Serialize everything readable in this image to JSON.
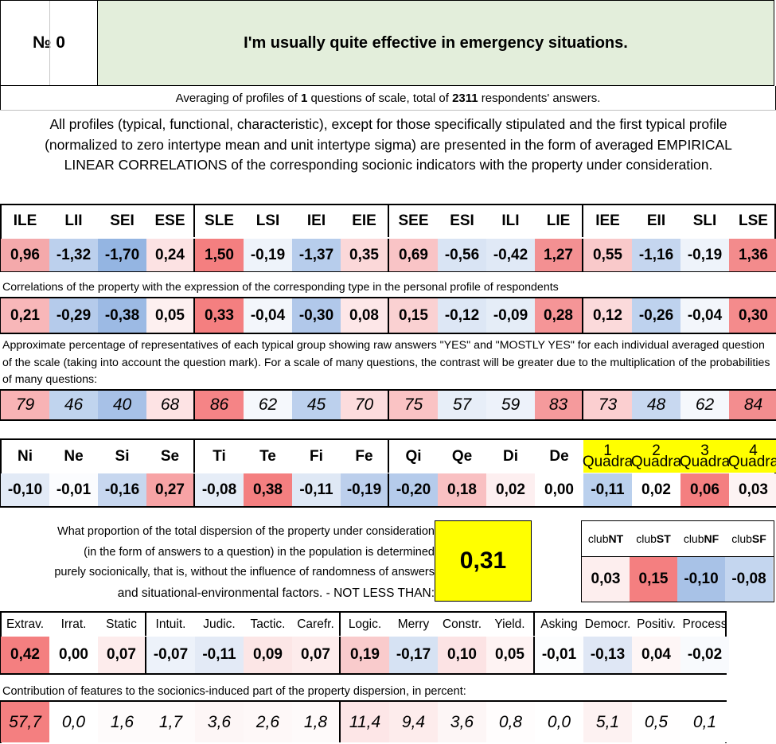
{
  "header": {
    "no_label": "№ 0",
    "question": "I'm usually quite effective in emergency situations."
  },
  "averaging": {
    "pre": "Averaging of profiles of ",
    "n_questions": "1",
    "mid": " questions of scale, total of ",
    "n_respondents": "2311",
    "post": " respondents' answers."
  },
  "intro_text": "All profiles (typical, functional, characteristic), except for those specifically stipulated and the first typical profile (normalized to zero intertype mean and unit intertype sigma) are presented in the form of averaged EMPIRICAL LINEAR CORRELATIONS of the corresponding socionic indicators with the property under consideration.",
  "types": {
    "labels": [
      "ILE",
      "LII",
      "SEI",
      "ESE",
      "SLE",
      "LSI",
      "IEI",
      "EIE",
      "SEE",
      "ESI",
      "ILI",
      "LIE",
      "IEE",
      "EII",
      "SLI",
      "LSE"
    ],
    "values": [
      "0,96",
      "-1,32",
      "-1,70",
      "0,24",
      "1,50",
      "-0,19",
      "-1,37",
      "0,35",
      "0,69",
      "-0,56",
      "-0,42",
      "1,27",
      "0,55",
      "-1,16",
      "-0,19",
      "1,36"
    ],
    "values_colors": [
      "#f4a9ab",
      "#bcd0ed",
      "#94b5e2",
      "#fce2e3",
      "#f47f80",
      "#eef3fa",
      "#b7cdec",
      "#fbd8d9",
      "#f9c4c6",
      "#d9e4f4",
      "#e0e9f6",
      "#f39092",
      "#f9c9ca",
      "#c5d6ef",
      "#eef3fa",
      "#f38b8c"
    ],
    "corr_note": "Correlations of the property with the expression of the corresponding type in the personal profile of respondents",
    "corr": [
      "0,21",
      "-0,29",
      "-0,38",
      "0,05",
      "0,33",
      "-0,04",
      "-0,30",
      "0,08",
      "0,15",
      "-0,12",
      "-0,09",
      "0,28",
      "0,12",
      "-0,26",
      "-0,04",
      "0,30"
    ],
    "corr_colors": [
      "#f8b7b9",
      "#b5cbeb",
      "#9cbae4",
      "#fdf0f0",
      "#f47f80",
      "#f3f6fb",
      "#b1c8ea",
      "#fde7e8",
      "#fad1d2",
      "#dde7f5",
      "#e5edf7",
      "#f59597",
      "#fbdadb",
      "#bed2ee",
      "#f3f6fb",
      "#f48b8c"
    ],
    "pct_note": "Approximate percentage of representatives of each typical group showing raw answers \"YES\" and \"MOSTLY YES\" for each individual averaged question of the scale (taking into account the question mark). For a scale of many questions, the contrast will be greater due to the multiplication of the probabilities of many questions:",
    "pct": [
      "79",
      "46",
      "40",
      "68",
      "86",
      "62",
      "45",
      "70",
      "75",
      "57",
      "59",
      "83",
      "73",
      "48",
      "62",
      "84"
    ],
    "pct_colors": [
      "#f8b3b5",
      "#c0d4ee",
      "#a7c1e7",
      "#fde3e4",
      "#f58486",
      "#f5f8fc",
      "#bcd0ed",
      "#fcdcdd",
      "#fac3c4",
      "#e7eef8",
      "#edf2fa",
      "#f59a9c",
      "#fbcfd0",
      "#c8d8f0",
      "#f5f8fc",
      "#f38d8f"
    ]
  },
  "functions": {
    "labels": [
      "Ni",
      "Ne",
      "Si",
      "Se",
      "Ti",
      "Te",
      "Fi",
      "Fe",
      "Qi",
      "Qe",
      "Di",
      "De"
    ],
    "values": [
      "-0,10",
      "-0,01",
      "-0,16",
      "0,27",
      "-0,08",
      "0,38",
      "-0,11",
      "-0,19",
      "-0,20",
      "0,18",
      "0,02",
      "0,00"
    ],
    "colors": [
      "#e2eaf6",
      "#fbfcfe",
      "#c7d7ef",
      "#f7a3a5",
      "#e6edf7",
      "#f47f80",
      "#dfe8f5",
      "#bccfec",
      "#b5cbeb",
      "#f9c0c2",
      "#fdeff0",
      "#ffffff"
    ]
  },
  "quadras": {
    "numbers": [
      "1",
      "2",
      "3",
      "4"
    ],
    "word": "Quadra",
    "values": [
      "-0,11",
      "0,02",
      "0,06",
      "0,03"
    ],
    "colors": [
      "#bad0ed",
      "#ffffff",
      "#f47f80",
      "#fdf3f3"
    ]
  },
  "dispersion": {
    "text_lines": [
      "What proportion of the total dispersion of the property under consideration",
      "(in the form of answers to a question) in the population is determined",
      "purely socionically, that is, without the influence of randomness of answers",
      "and situational-environmental factors. - NOT LESS THAN:"
    ],
    "value": "0,31"
  },
  "clubs": {
    "prefix": "club",
    "names": [
      "NT",
      "ST",
      "NF",
      "SF"
    ],
    "values": [
      "0,03",
      "0,15",
      "-0,10",
      "-0,08"
    ],
    "colors": [
      "#fdeeee",
      "#f47f80",
      "#a8c2e7",
      "#c4d6ef"
    ]
  },
  "features": {
    "labels": [
      "Extrav.",
      "Irrat.",
      "Static",
      "Intuit.",
      "Judic.",
      "Tactic.",
      "Carefr.",
      "Logic.",
      "Merry",
      "Constr.",
      "Yield.",
      "Asking",
      "Democr.",
      "Positiv.",
      "Process"
    ],
    "values": [
      "0,42",
      "0,00",
      "0,07",
      "-0,07",
      "-0,11",
      "0,09",
      "0,07",
      "0,19",
      "-0,17",
      "0,10",
      "0,05",
      "-0,01",
      "-0,13",
      "0,04",
      "-0,02"
    ],
    "values_colors": [
      "#f47f80",
      "#ffffff",
      "#fdecec",
      "#edf2fa",
      "#e3eaf6",
      "#fce6e6",
      "#fdecec",
      "#f9cbcc",
      "#d6e2f3",
      "#fce3e4",
      "#fef3f3",
      "#fcfdfe",
      "#dfe7f5",
      "#fef6f6",
      "#f8fafd"
    ],
    "contrib_note": "Contribution of features to the sociоnics-induced part of the property dispersion, in percent:",
    "contrib": [
      "57,7",
      "0,0",
      "1,6",
      "1,7",
      "3,6",
      "2,6",
      "1,8",
      "11,4",
      "9,4",
      "3,6",
      "0,8",
      "0,0",
      "5,1",
      "0,5",
      "0,1"
    ],
    "contrib_colors": [
      "#f47f80",
      "#ffffff",
      "#fefbfb",
      "#fefbfb",
      "#fdf6f6",
      "#fef8f8",
      "#fefafa",
      "#fde6e7",
      "#fdecec",
      "#fdf6f6",
      "#fffdfd",
      "#ffffff",
      "#fdf2f2",
      "#fffefe",
      "#ffffff"
    ]
  }
}
